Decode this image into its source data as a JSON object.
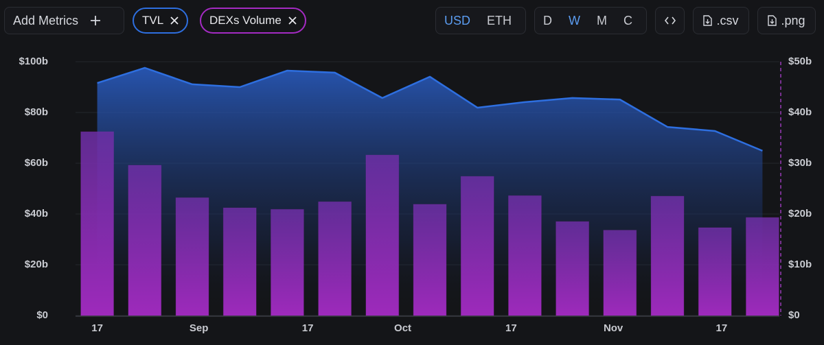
{
  "toolbar": {
    "add_metrics": "Add Metrics",
    "currencies": [
      "USD",
      "ETH"
    ],
    "active_currency": "USD",
    "periods": [
      "D",
      "W",
      "M",
      "C"
    ],
    "active_period": "W",
    "downloads": [
      ".csv",
      ".png"
    ]
  },
  "chart_data": {
    "type": "bar-area",
    "categories": [
      null,
      null,
      null,
      null,
      null,
      null,
      null,
      null,
      null,
      null,
      null,
      null,
      null,
      null,
      null
    ],
    "xlim": [
      -0.5,
      14.5
    ],
    "xticks": [
      {
        "value": 0,
        "label": "17"
      },
      {
        "value": 2.14,
        "label": "Sep"
      },
      {
        "value": 4.43,
        "label": "17"
      },
      {
        "value": 6.43,
        "label": "Oct"
      },
      {
        "value": 8.71,
        "label": "17"
      },
      {
        "value": 10.86,
        "label": "Nov"
      },
      {
        "value": 13.14,
        "label": "17"
      }
    ],
    "ylim": [
      0,
      100
    ],
    "yticks": [
      {
        "value": 0,
        "label": "$0"
      },
      {
        "value": 20,
        "label": "$20b"
      },
      {
        "value": 40,
        "label": "$40b"
      },
      {
        "value": 60,
        "label": "$60b"
      },
      {
        "value": 80,
        "label": "$80b"
      },
      {
        "value": 100,
        "label": "$100b"
      }
    ],
    "y2lim": [
      0,
      50
    ],
    "y2ticks": [
      {
        "value": 0,
        "label": "$0"
      },
      {
        "value": 10,
        "label": "$10b"
      },
      {
        "value": 20,
        "label": "$20b"
      },
      {
        "value": 30,
        "label": "$30b"
      },
      {
        "value": 40,
        "label": "$40b"
      },
      {
        "value": 50,
        "label": "$50b"
      }
    ],
    "grid": true,
    "series": [
      {
        "name": "TVL",
        "type": "area",
        "color": "#2e6fe0",
        "values": [
          91.6,
          97.6,
          91.1,
          90,
          96.5,
          95.7,
          85.7,
          94.1,
          81.9,
          84.1,
          85.7,
          85.1,
          74.3,
          72.7,
          64.9
        ]
      },
      {
        "name": "DEXs Volume",
        "type": "bar",
        "axis": "y2",
        "color": "#a52bc4",
        "values": [
          36.2,
          29.6,
          23.2,
          21.2,
          20.9,
          22.4,
          31.6,
          21.9,
          27.4,
          23.6,
          18.5,
          16.8,
          23.5,
          17.3,
          19.3
        ]
      }
    ]
  }
}
